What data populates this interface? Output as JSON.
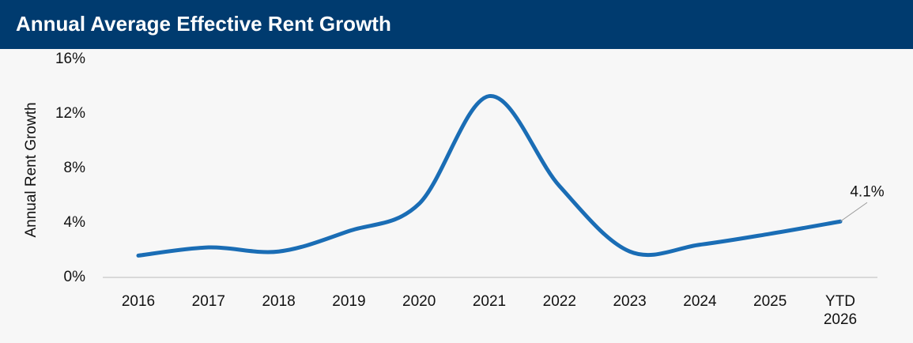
{
  "chart_data": {
    "type": "line",
    "title": "Annual Average Effective Rent Growth",
    "y_label": "Annual Rent Growth",
    "categories": [
      "2016",
      "2017",
      "2018",
      "2019",
      "2020",
      "2021",
      "2022",
      "2023",
      "2024",
      "2025",
      "YTD 2026"
    ],
    "series": [
      {
        "name": "Annual Rent Growth",
        "color": "#1a6db5",
        "values": [
          1.6,
          2.2,
          1.9,
          3.4,
          5.4,
          13.3,
          6.7,
          1.9,
          2.4,
          3.2,
          4.1
        ],
        "value_labels": [
          null,
          null,
          null,
          null,
          null,
          null,
          null,
          null,
          null,
          null,
          "4.1%"
        ]
      }
    ],
    "ylim": [
      0,
      16
    ],
    "yticks": [
      {
        "value": 0,
        "label": "0%"
      },
      {
        "value": 4,
        "label": "4%"
      },
      {
        "value": 8,
        "label": "8%"
      },
      {
        "value": 12,
        "label": "12%"
      },
      {
        "value": 16,
        "label": "16%"
      }
    ],
    "grid": false,
    "legend": false
  }
}
